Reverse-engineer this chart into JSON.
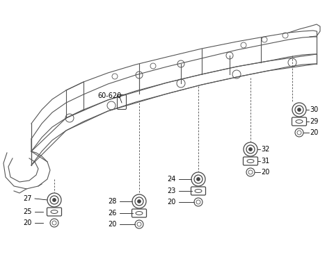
{
  "bg_color": "#ffffff",
  "line_color": "#444444",
  "text_color": "#000000",
  "figsize": [
    4.8,
    3.73
  ],
  "dpi": 100,
  "frame_color": "#555555",
  "part_color": "#444444"
}
